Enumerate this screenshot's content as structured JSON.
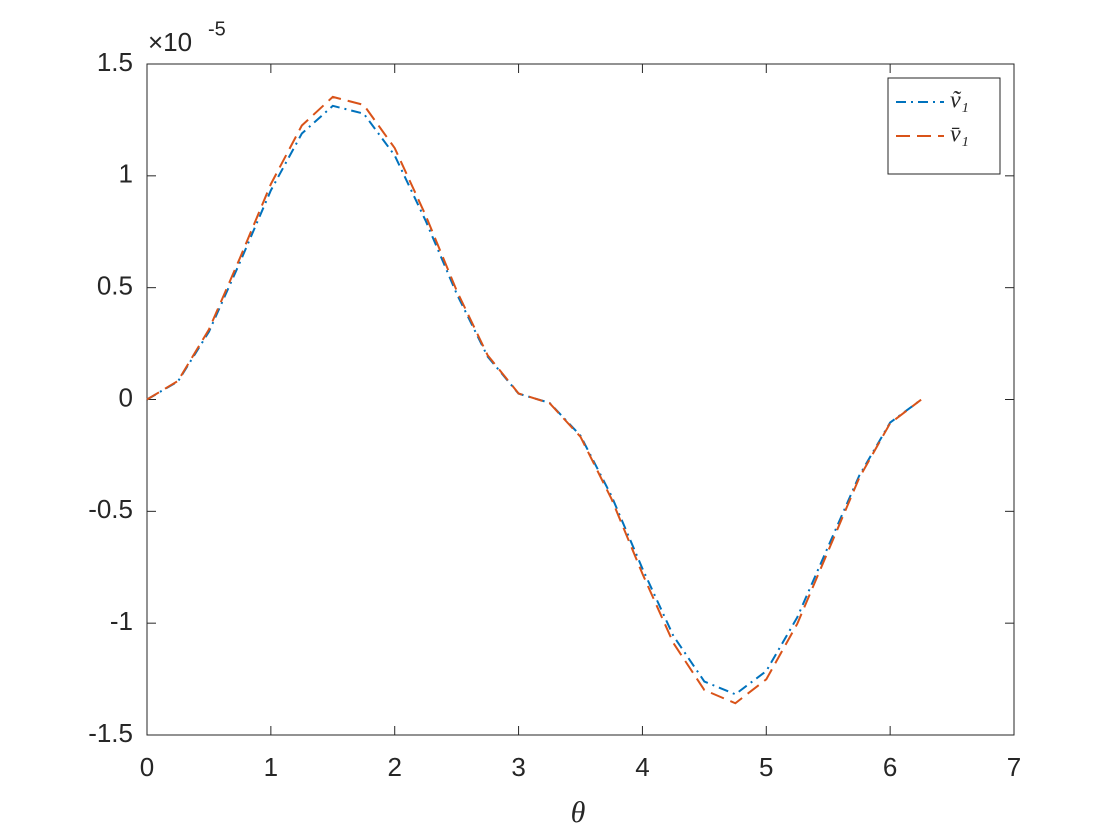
{
  "chart_data": {
    "type": "line",
    "xlabel": "θ",
    "y_multiplier": "×10",
    "y_exponent": "-5",
    "x": [
      0,
      0.25,
      0.5,
      0.75,
      1,
      1.25,
      1.5,
      1.75,
      2,
      2.25,
      2.5,
      2.75,
      3,
      3.25,
      3.5,
      3.75,
      4,
      4.25,
      4.5,
      4.75,
      5,
      5.25,
      5.5,
      5.75,
      6,
      6.25
    ],
    "series": [
      {
        "name": "ṽ₁",
        "color": "#0072bd",
        "dash": "dashdot",
        "values": [
          0,
          0.081,
          0.303,
          0.613,
          0.935,
          1.189,
          1.313,
          1.278,
          1.091,
          0.799,
          0.473,
          0.192,
          0.026,
          -0.015,
          -0.162,
          -0.431,
          -0.756,
          -1.057,
          -1.261,
          -1.318,
          -1.214,
          -0.974,
          -0.657,
          -0.341,
          -0.103,
          -0.001
        ]
      },
      {
        "name": "v̄₁",
        "color": "#d95319",
        "dash": "dashed",
        "values": [
          0,
          0.083,
          0.313,
          0.632,
          0.963,
          1.225,
          1.353,
          1.317,
          1.124,
          0.823,
          0.487,
          0.198,
          0.027,
          -0.016,
          -0.167,
          -0.444,
          -0.779,
          -1.089,
          -1.299,
          -1.358,
          -1.251,
          -1.003,
          -0.677,
          -0.351,
          -0.106,
          -0.001
        ]
      }
    ],
    "xlim": [
      0,
      7
    ],
    "xticks": [
      0,
      1,
      2,
      3,
      4,
      5,
      6,
      7
    ],
    "ylim": [
      -1.5,
      1.5
    ],
    "yticks": [
      -1.5,
      -1,
      -0.5,
      0,
      0.5,
      1,
      1.5
    ],
    "grid": false,
    "legend": "northeast"
  }
}
